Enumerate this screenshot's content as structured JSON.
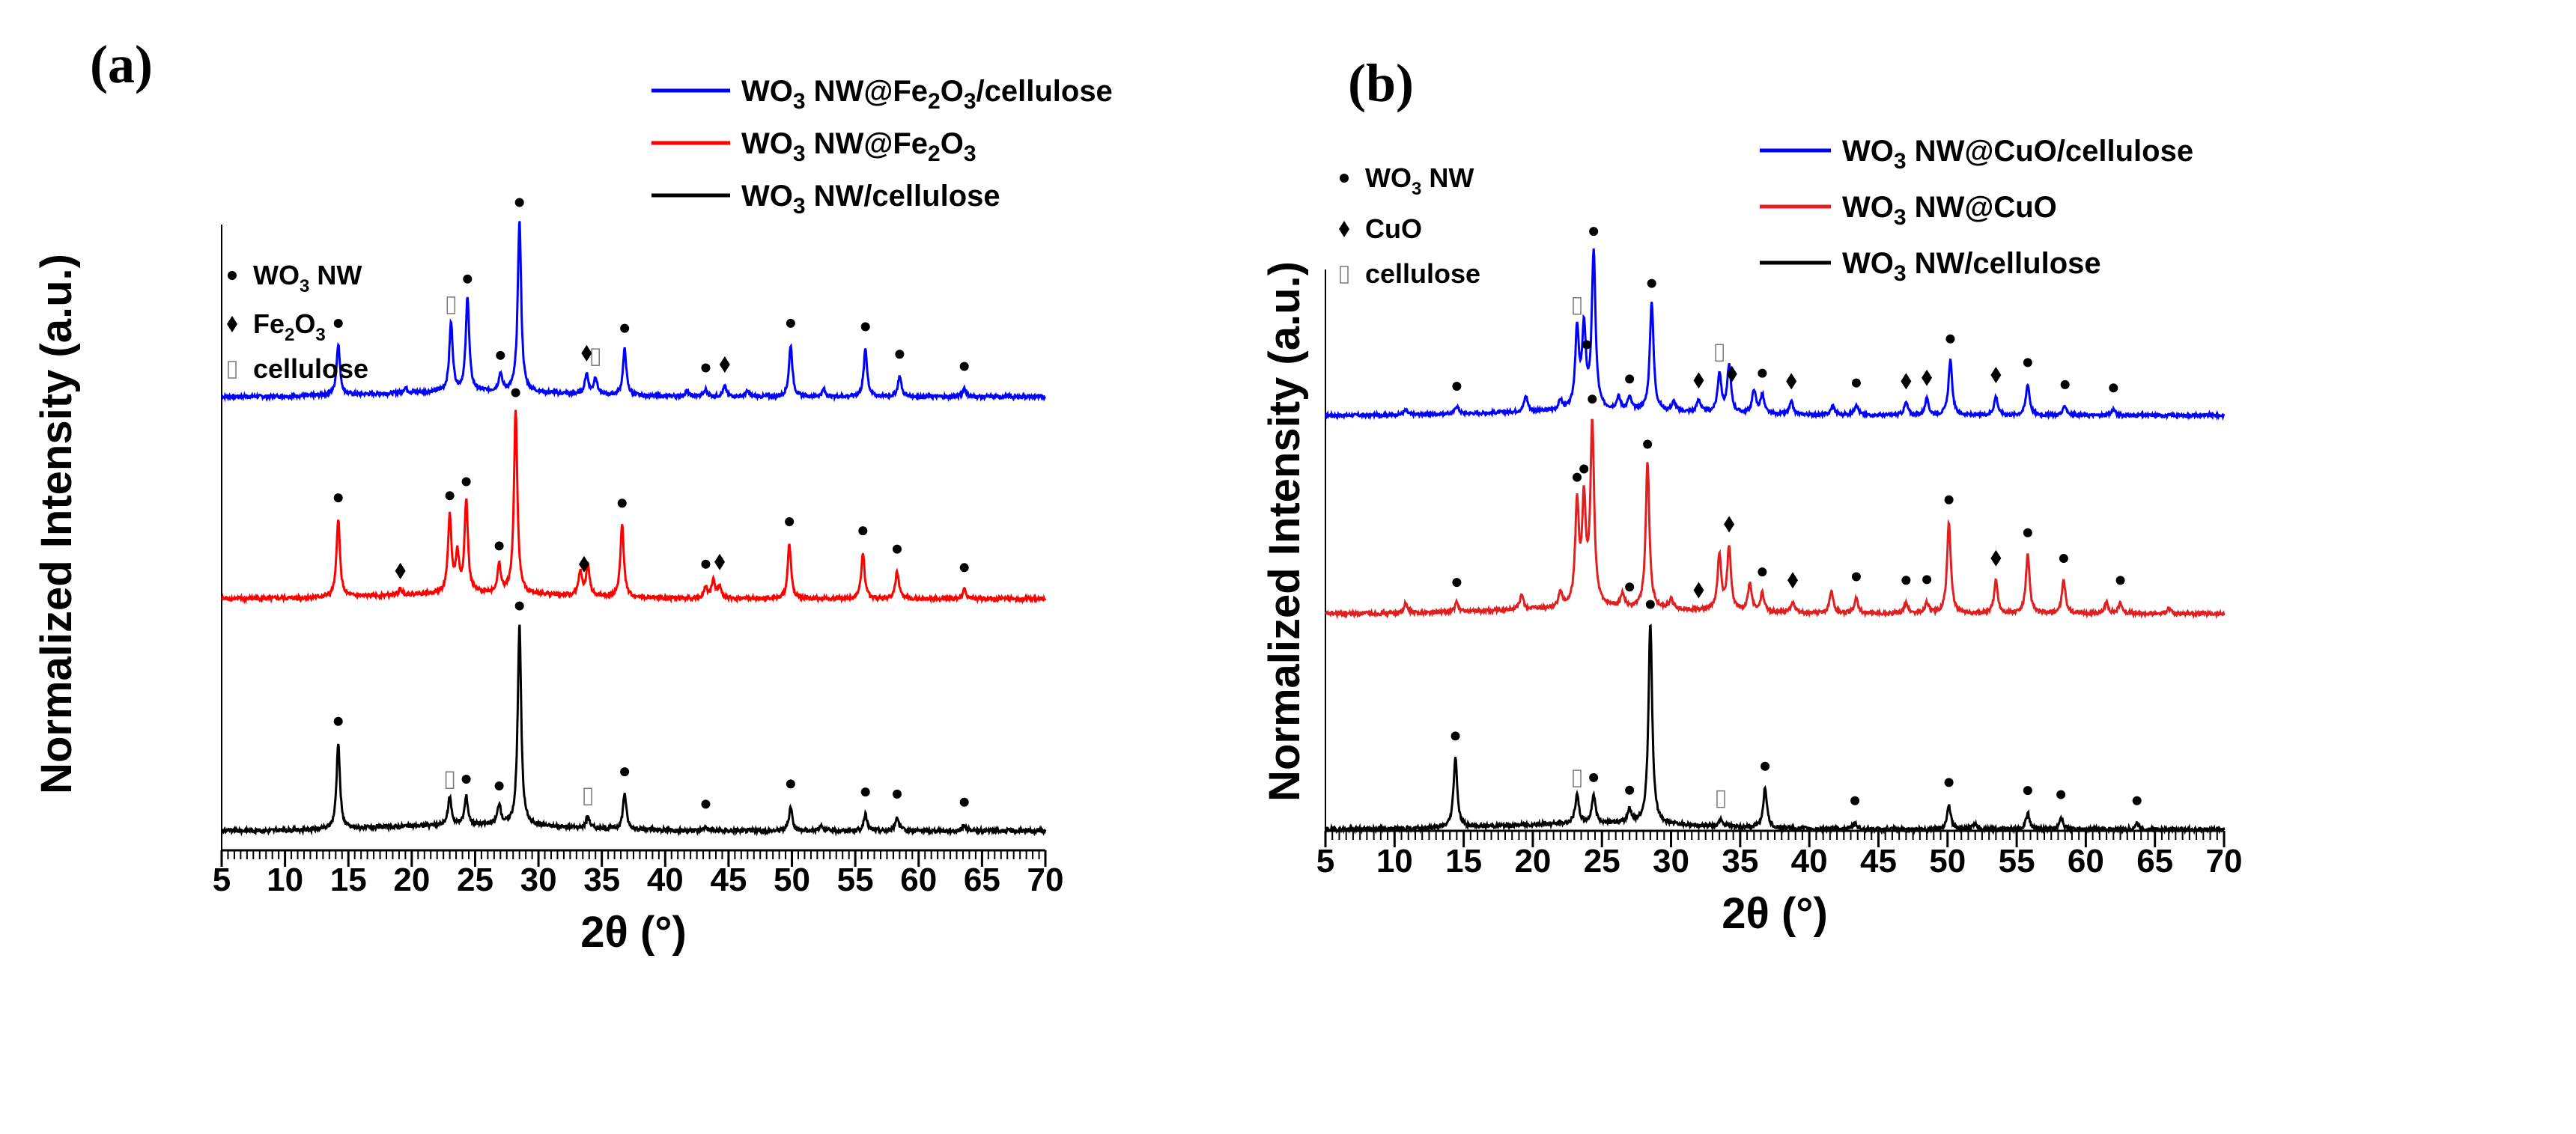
{
  "chart_data": [
    {
      "type": "line",
      "panel_label": "(a)",
      "xlabel": "2θ (°)",
      "ylabel": "Normalized Intensity (a.u.)",
      "xlim": [
        5,
        70
      ],
      "xticks": [
        "5",
        "10",
        "15",
        "20",
        "25",
        "30",
        "35",
        "40",
        "45",
        "50",
        "55",
        "60",
        "65",
        "70"
      ],
      "grid": false,
      "legend_placement": "top-right",
      "symbol_legend": [
        {
          "symbol": "dot",
          "label": [
            "WO",
            "3",
            " NW"
          ]
        },
        {
          "symbol": "diamond",
          "label": [
            "Fe",
            "2",
            "O",
            "3"
          ]
        },
        {
          "symbol": "cellulose-box",
          "label": [
            "cellulose"
          ]
        }
      ],
      "series": [
        {
          "name": [
            "WO",
            "3",
            " NW@Fe",
            "2",
            "O",
            "3",
            "/cellulose"
          ],
          "color": "#0000ff",
          "peaks": [
            [
              14.2,
              0.3
            ],
            [
              19.5,
              0.03
            ],
            [
              23.1,
              0.4
            ],
            [
              24.4,
              0.55
            ],
            [
              27.0,
              0.1
            ],
            [
              28.5,
              1.0
            ],
            [
              33.8,
              0.12
            ],
            [
              34.5,
              0.1
            ],
            [
              36.8,
              0.27
            ],
            [
              41.7,
              0.03
            ],
            [
              43.2,
              0.04
            ],
            [
              44.7,
              0.06
            ],
            [
              46.5,
              0.03
            ],
            [
              49.9,
              0.3
            ],
            [
              52.5,
              0.04
            ],
            [
              55.8,
              0.28
            ],
            [
              58.5,
              0.12
            ],
            [
              63.6,
              0.05
            ]
          ],
          "markers": [
            [
              14.2,
              "dot"
            ],
            [
              23.1,
              "cellulose-box"
            ],
            [
              24.4,
              "dot"
            ],
            [
              27.0,
              "dot"
            ],
            [
              28.5,
              "dot"
            ],
            [
              33.8,
              "diamond"
            ],
            [
              34.5,
              "cellulose-box"
            ],
            [
              36.8,
              "dot"
            ],
            [
              43.2,
              "dot"
            ],
            [
              44.7,
              "diamond"
            ],
            [
              49.9,
              "dot"
            ],
            [
              55.8,
              "dot"
            ],
            [
              58.5,
              "dot"
            ],
            [
              63.6,
              "dot"
            ]
          ]
        },
        {
          "name": [
            "WO",
            "3",
            " NW@Fe",
            "2",
            "O",
            "3"
          ],
          "color": "#ff0000",
          "peaks": [
            [
              14.2,
              0.43
            ],
            [
              19.1,
              0.03
            ],
            [
              23.0,
              0.42
            ],
            [
              23.6,
              0.2
            ],
            [
              24.3,
              0.5
            ],
            [
              26.9,
              0.15
            ],
            [
              28.2,
              1.0
            ],
            [
              33.3,
              0.13
            ],
            [
              33.9,
              0.17
            ],
            [
              36.6,
              0.4
            ],
            [
              43.2,
              0.06
            ],
            [
              43.8,
              0.1
            ],
            [
              44.3,
              0.07
            ],
            [
              49.8,
              0.3
            ],
            [
              55.6,
              0.25
            ],
            [
              58.3,
              0.15
            ],
            [
              63.6,
              0.05
            ]
          ],
          "markers": [
            [
              14.2,
              "dot"
            ],
            [
              19.1,
              "diamond"
            ],
            [
              23.0,
              "dot"
            ],
            [
              24.3,
              "dot"
            ],
            [
              26.9,
              "dot"
            ],
            [
              28.2,
              "dot"
            ],
            [
              33.6,
              "diamond"
            ],
            [
              36.6,
              "dot"
            ],
            [
              43.2,
              "dot"
            ],
            [
              44.3,
              "diamond"
            ],
            [
              49.8,
              "dot"
            ],
            [
              55.6,
              "dot"
            ],
            [
              58.3,
              "dot"
            ],
            [
              63.6,
              "dot"
            ]
          ]
        },
        {
          "name": [
            "WO",
            "3",
            " NW/cellulose"
          ],
          "color": "#000000",
          "peaks": [
            [
              14.2,
              0.43
            ],
            [
              23.0,
              0.14
            ],
            [
              24.3,
              0.14
            ],
            [
              26.9,
              0.1
            ],
            [
              28.5,
              1.0
            ],
            [
              33.9,
              0.06
            ],
            [
              36.8,
              0.18
            ],
            [
              43.2,
              0.02
            ],
            [
              49.9,
              0.12
            ],
            [
              52.3,
              0.03
            ],
            [
              55.8,
              0.08
            ],
            [
              58.3,
              0.07
            ],
            [
              63.6,
              0.03
            ]
          ],
          "markers": [
            [
              14.2,
              "dot"
            ],
            [
              23.0,
              "cellulose-box"
            ],
            [
              24.3,
              "dot"
            ],
            [
              26.9,
              "dot"
            ],
            [
              28.5,
              "dot"
            ],
            [
              33.9,
              "cellulose-box"
            ],
            [
              36.8,
              "dot"
            ],
            [
              43.2,
              "dot"
            ],
            [
              49.9,
              "dot"
            ],
            [
              55.8,
              "dot"
            ],
            [
              58.3,
              "dot"
            ],
            [
              63.6,
              "dot"
            ]
          ]
        }
      ]
    },
    {
      "type": "line",
      "panel_label": "(b)",
      "xlabel": "2θ (°)",
      "ylabel": "Normalized Intensity (a.u.)",
      "xlim": [
        5,
        70
      ],
      "xticks": [
        "5",
        "10",
        "15",
        "20",
        "25",
        "30",
        "35",
        "40",
        "45",
        "50",
        "55",
        "60",
        "65",
        "70"
      ],
      "grid": false,
      "legend_placement": "top-right",
      "symbol_legend": [
        {
          "symbol": "dot",
          "label": [
            "WO",
            "3",
            " NW"
          ]
        },
        {
          "symbol": "diamond",
          "label": [
            "CuO"
          ]
        },
        {
          "symbol": "cellulose-box",
          "label": [
            "cellulose"
          ]
        }
      ],
      "series": [
        {
          "name": [
            "WO",
            "3",
            " NW@CuO/cellulose"
          ],
          "color": "#0000ff",
          "peaks": [
            [
              10.8,
              0.03
            ],
            [
              14.5,
              0.05
            ],
            [
              19.5,
              0.1
            ],
            [
              22.0,
              0.06
            ],
            [
              23.2,
              0.5
            ],
            [
              23.7,
              0.5
            ],
            [
              24.4,
              1.0
            ],
            [
              26.2,
              0.08
            ],
            [
              27.0,
              0.08
            ],
            [
              28.6,
              0.7
            ],
            [
              30.2,
              0.06
            ],
            [
              32.0,
              0.08
            ],
            [
              33.5,
              0.25
            ],
            [
              34.2,
              0.3
            ],
            [
              36.0,
              0.15
            ],
            [
              36.6,
              0.12
            ],
            [
              38.7,
              0.08
            ],
            [
              41.7,
              0.06
            ],
            [
              43.4,
              0.07
            ],
            [
              47.0,
              0.08
            ],
            [
              48.5,
              0.1
            ],
            [
              50.2,
              0.35
            ],
            [
              53.5,
              0.12
            ],
            [
              55.8,
              0.2
            ],
            [
              58.5,
              0.06
            ],
            [
              62.0,
              0.04
            ]
          ],
          "markers": [
            [
              14.5,
              "dot"
            ],
            [
              23.2,
              "cellulose-box"
            ],
            [
              23.9,
              "dot"
            ],
            [
              24.4,
              "dot"
            ],
            [
              27.0,
              "dot"
            ],
            [
              28.6,
              "dot"
            ],
            [
              32.0,
              "diamond"
            ],
            [
              33.5,
              "cellulose-box"
            ],
            [
              34.4,
              "diamond"
            ],
            [
              36.6,
              "dot"
            ],
            [
              38.7,
              "diamond"
            ],
            [
              43.4,
              "dot"
            ],
            [
              47.0,
              "diamond"
            ],
            [
              48.5,
              "diamond"
            ],
            [
              50.2,
              "dot"
            ],
            [
              53.5,
              "diamond"
            ],
            [
              55.8,
              "dot"
            ],
            [
              58.5,
              "dot"
            ],
            [
              62.0,
              "dot"
            ]
          ]
        },
        {
          "name": [
            "WO",
            "3",
            " NW@CuO"
          ],
          "color": "#e02020",
          "peaks": [
            [
              10.8,
              0.05
            ],
            [
              14.5,
              0.05
            ],
            [
              19.2,
              0.08
            ],
            [
              22.0,
              0.08
            ],
            [
              23.2,
              0.55
            ],
            [
              23.7,
              0.55
            ],
            [
              24.3,
              1.0
            ],
            [
              26.5,
              0.08
            ],
            [
              28.3,
              0.8
            ],
            [
              30.0,
              0.05
            ],
            [
              33.5,
              0.3
            ],
            [
              34.2,
              0.35
            ],
            [
              35.7,
              0.15
            ],
            [
              36.6,
              0.1
            ],
            [
              38.8,
              0.06
            ],
            [
              41.6,
              0.12
            ],
            [
              43.4,
              0.08
            ],
            [
              47.0,
              0.06
            ],
            [
              48.5,
              0.06
            ],
            [
              50.1,
              0.5
            ],
            [
              53.5,
              0.18
            ],
            [
              55.8,
              0.32
            ],
            [
              58.4,
              0.18
            ],
            [
              61.5,
              0.06
            ],
            [
              62.5,
              0.06
            ],
            [
              66.0,
              0.03
            ]
          ],
          "markers": [
            [
              14.5,
              "dot"
            ],
            [
              23.2,
              "dot"
            ],
            [
              23.7,
              "dot"
            ],
            [
              24.3,
              "dot"
            ],
            [
              27.0,
              "dot"
            ],
            [
              28.3,
              "dot"
            ],
            [
              32.0,
              "diamond"
            ],
            [
              34.2,
              "diamond"
            ],
            [
              36.6,
              "dot"
            ],
            [
              38.8,
              "diamond"
            ],
            [
              43.4,
              "dot"
            ],
            [
              47.0,
              "dot"
            ],
            [
              48.5,
              "dot"
            ],
            [
              50.1,
              "dot"
            ],
            [
              53.5,
              "diamond"
            ],
            [
              55.8,
              "dot"
            ],
            [
              58.4,
              "dot"
            ],
            [
              62.5,
              "dot"
            ]
          ]
        },
        {
          "name": [
            "WO",
            "3",
            " NW/cellulose"
          ],
          "color": "#000000",
          "peaks": [
            [
              14.4,
              0.35
            ],
            [
              23.2,
              0.14
            ],
            [
              24.4,
              0.14
            ],
            [
              27.0,
              0.07
            ],
            [
              28.5,
              1.0
            ],
            [
              33.6,
              0.04
            ],
            [
              36.8,
              0.2
            ],
            [
              43.3,
              0.03
            ],
            [
              50.1,
              0.12
            ],
            [
              52.0,
              0.03
            ],
            [
              55.8,
              0.08
            ],
            [
              58.2,
              0.06
            ],
            [
              63.7,
              0.03
            ]
          ],
          "markers": [
            [
              14.4,
              "dot"
            ],
            [
              23.2,
              "cellulose-box"
            ],
            [
              24.4,
              "dot"
            ],
            [
              27.0,
              "dot"
            ],
            [
              28.5,
              "dot"
            ],
            [
              33.6,
              "cellulose-box"
            ],
            [
              36.8,
              "dot"
            ],
            [
              43.3,
              "dot"
            ],
            [
              50.1,
              "dot"
            ],
            [
              55.8,
              "dot"
            ],
            [
              58.2,
              "dot"
            ],
            [
              63.7,
              "dot"
            ]
          ]
        }
      ]
    }
  ]
}
